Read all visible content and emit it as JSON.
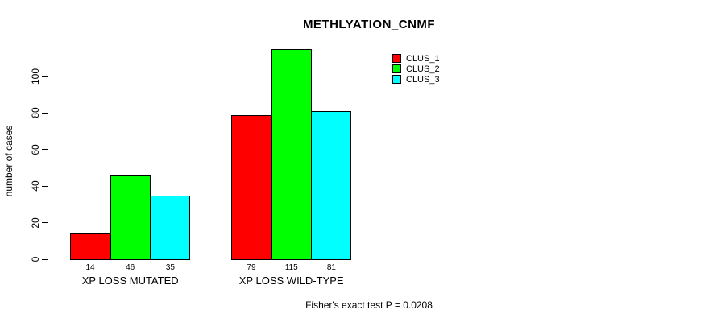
{
  "title": "METHLYATION_CNMF",
  "footer": "Fisher's exact test P = 0.0208",
  "ylabel": "number of cases",
  "legend": {
    "position": "top-right",
    "items": [
      {
        "label": "CLUS_1",
        "color": "#ff0000"
      },
      {
        "label": "CLUS_2",
        "color": "#00ff00"
      },
      {
        "label": "CLUS_3",
        "color": "#00ffff"
      }
    ]
  },
  "chart_data": {
    "type": "bar",
    "title": "METHLYATION_CNMF",
    "categories": [
      "XP LOSS MUTATED",
      "XP LOSS WILD-TYPE"
    ],
    "series": [
      {
        "name": "CLUS_1",
        "color": "#ff0000",
        "values": [
          14,
          79
        ]
      },
      {
        "name": "CLUS_2",
        "color": "#00ff00",
        "values": [
          46,
          115
        ]
      },
      {
        "name": "CLUS_3",
        "color": "#00ffff",
        "values": [
          35,
          81
        ]
      }
    ],
    "xlabel": "",
    "ylabel": "number of cases",
    "yticks": [
      0,
      20,
      40,
      60,
      80,
      100
    ],
    "ylim": [
      0,
      115
    ],
    "grid": false,
    "legend_position": "top-right",
    "bar_value_labels": [
      [
        14,
        46,
        35
      ],
      [
        79,
        115,
        81
      ]
    ],
    "annotation": "Fisher's exact test P = 0.0208"
  }
}
